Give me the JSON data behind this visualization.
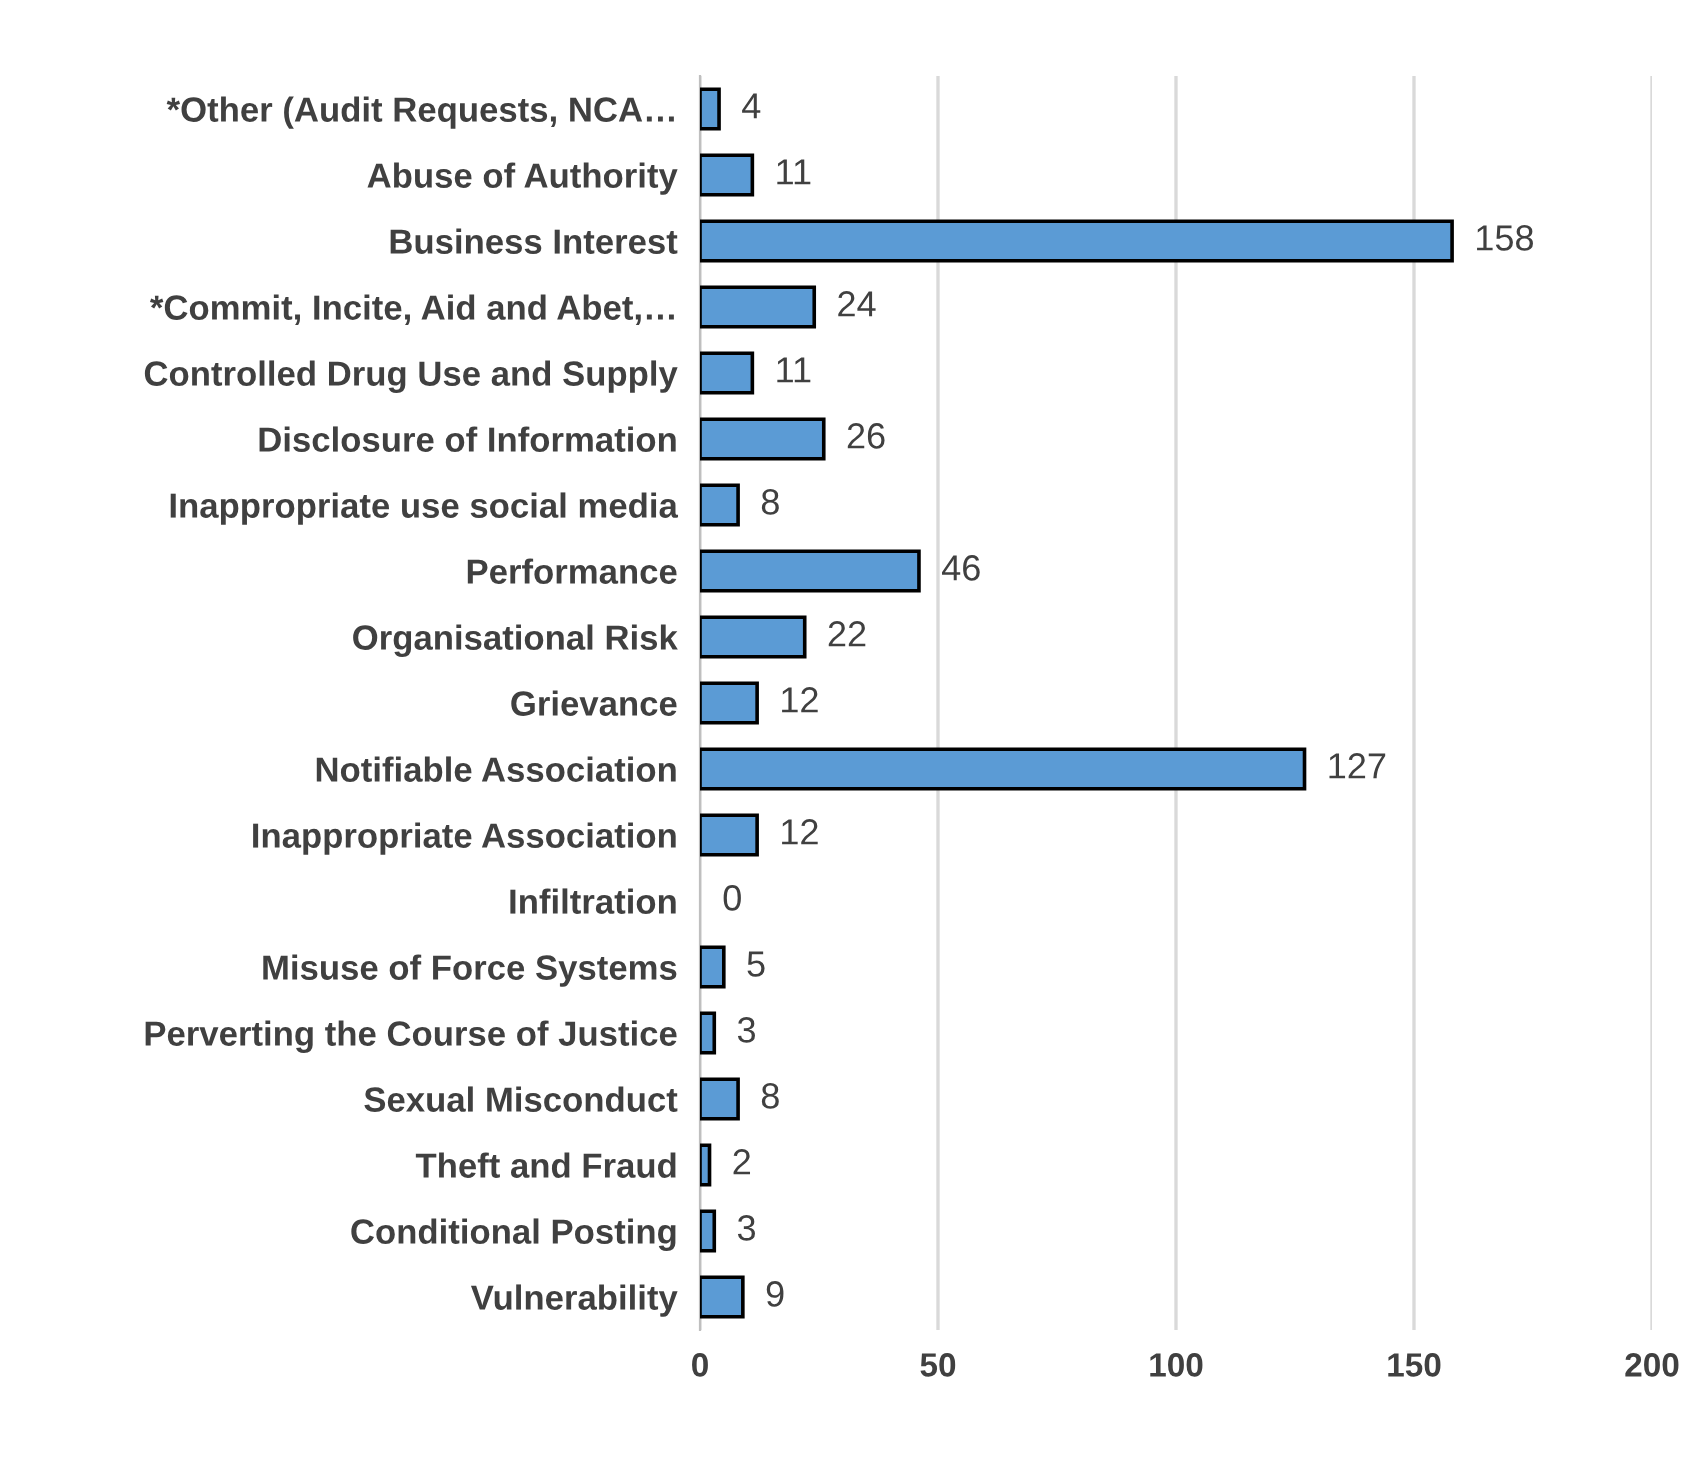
{
  "chart_data": {
    "type": "bar",
    "orientation": "horizontal",
    "categories": [
      "*Other (Audit Requests, NCA…",
      "Abuse of Authority",
      "Business Interest",
      "*Commit, Incite, Aid and Abet,…",
      "Controlled Drug Use and Supply",
      "Disclosure of Information",
      "Inappropriate use social media",
      "Performance",
      "Organisational Risk",
      "Grievance",
      "Notifiable Association",
      "Inappropriate Association",
      "Infiltration",
      "Misuse of Force Systems",
      "Perverting the Course of Justice",
      "Sexual Misconduct",
      "Theft and Fraud",
      "Conditional Posting",
      "Vulnerability"
    ],
    "values": [
      4,
      11,
      158,
      24,
      11,
      26,
      8,
      46,
      22,
      12,
      127,
      12,
      0,
      5,
      3,
      8,
      2,
      3,
      9
    ],
    "color": "#5b9bd5",
    "xlim": [
      0,
      200
    ],
    "xticks": [
      0,
      50,
      100,
      150,
      200
    ],
    "grid": "x",
    "data_labels": true
  }
}
